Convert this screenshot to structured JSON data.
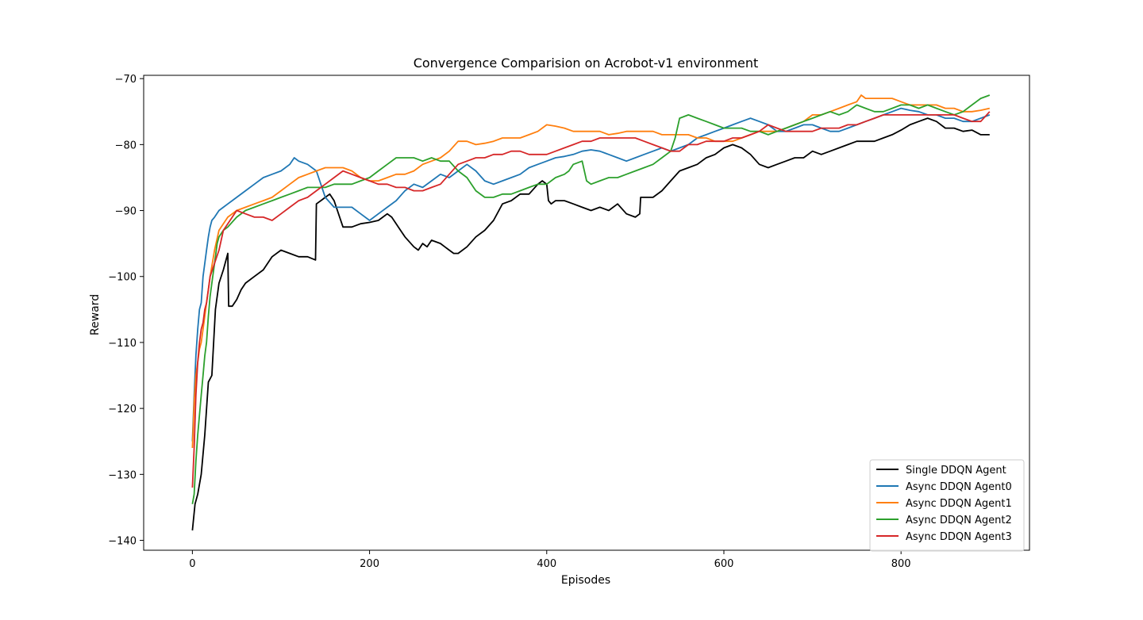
{
  "chart_data": {
    "type": "line",
    "title": "Convergence Comparision on Acrobot-v1 environment",
    "xlabel": "Episodes",
    "ylabel": "Reward",
    "xlim": [
      -55,
      945
    ],
    "ylim": [
      -141.5,
      -69.5
    ],
    "xticks": [
      0,
      200,
      400,
      600,
      800
    ],
    "yticks": [
      -140,
      -130,
      -120,
      -110,
      -100,
      -90,
      -80,
      -70
    ],
    "grid": false,
    "legend_position": "lower-right",
    "series": [
      {
        "name": "Single DDQN Agent",
        "color": "#000000",
        "x": [
          0,
          3,
          6,
          10,
          14,
          18,
          22,
          26,
          30,
          35,
          40,
          41,
          45,
          50,
          55,
          60,
          70,
          80,
          90,
          100,
          110,
          120,
          130,
          139,
          140,
          145,
          150,
          155,
          160,
          170,
          175,
          180,
          190,
          200,
          210,
          215,
          220,
          225,
          230,
          235,
          240,
          250,
          255,
          260,
          265,
          270,
          280,
          285,
          290,
          295,
          300,
          310,
          320,
          330,
          340,
          350,
          360,
          370,
          380,
          390,
          395,
          400,
          402,
          405,
          410,
          420,
          430,
          440,
          450,
          460,
          470,
          480,
          490,
          500,
          505,
          506,
          510,
          520,
          530,
          540,
          550,
          560,
          570,
          580,
          590,
          600,
          610,
          620,
          630,
          640,
          650,
          660,
          670,
          680,
          690,
          700,
          710,
          720,
          730,
          740,
          750,
          760,
          770,
          780,
          790,
          800,
          810,
          820,
          830,
          840,
          850,
          860,
          870,
          880,
          890,
          900
        ],
        "y": [
          -138.5,
          -134.5,
          -133,
          -130,
          -124,
          -116,
          -115,
          -105,
          -101,
          -99,
          -96.5,
          -104.5,
          -104.5,
          -103.5,
          -102,
          -101,
          -100,
          -99,
          -97,
          -96,
          -96.5,
          -97,
          -97,
          -97.5,
          -89,
          -88.5,
          -88,
          -87.5,
          -88.5,
          -92.5,
          -92.5,
          -92.5,
          -92,
          -91.8,
          -91.5,
          -91,
          -90.5,
          -91,
          -92,
          -93,
          -94,
          -95.5,
          -96,
          -95,
          -95.5,
          -94.5,
          -95,
          -95.5,
          -96,
          -96.5,
          -96.5,
          -95.5,
          -94,
          -93,
          -91.5,
          -89,
          -88.5,
          -87.5,
          -87.5,
          -86,
          -85.5,
          -86,
          -88.5,
          -89,
          -88.5,
          -88.5,
          -89,
          -89.5,
          -90,
          -89.5,
          -90,
          -89,
          -90.5,
          -91,
          -90.5,
          -88,
          -88,
          -88,
          -87,
          -85.5,
          -84,
          -83.5,
          -83,
          -82,
          -81.5,
          -80.5,
          -80,
          -80.5,
          -81.5,
          -83,
          -83.5,
          -83,
          -82.5,
          -82,
          -82,
          -81,
          -81.5,
          -81,
          -80.5,
          -80,
          -79.5,
          -79.5,
          -79.5,
          -79,
          -78.5,
          -77.8,
          -77,
          -76.5,
          -76,
          -76.5,
          -77.5,
          -77.5,
          -78,
          -77.8,
          -78.5,
          -78.5
        ]
      },
      {
        "name": "Async DDQN Agent0",
        "color": "#1f77b4",
        "x": [
          0,
          2,
          4,
          6,
          8,
          10,
          12,
          14,
          16,
          18,
          20,
          22,
          25,
          30,
          35,
          40,
          50,
          60,
          70,
          80,
          90,
          100,
          110,
          115,
          120,
          130,
          140,
          145,
          150,
          160,
          170,
          180,
          190,
          200,
          210,
          220,
          230,
          240,
          250,
          260,
          270,
          280,
          290,
          300,
          310,
          320,
          330,
          340,
          350,
          360,
          370,
          380,
          390,
          400,
          410,
          420,
          430,
          440,
          450,
          460,
          470,
          480,
          490,
          500,
          510,
          520,
          530,
          540,
          550,
          560,
          570,
          580,
          590,
          600,
          610,
          620,
          630,
          640,
          650,
          660,
          670,
          680,
          690,
          700,
          710,
          720,
          730,
          740,
          750,
          760,
          770,
          780,
          790,
          800,
          810,
          820,
          830,
          840,
          850,
          860,
          870,
          880,
          890,
          900
        ],
        "y": [
          -125,
          -118,
          -112,
          -108,
          -105,
          -104,
          -100,
          -98,
          -96,
          -94,
          -92.5,
          -91.5,
          -91,
          -90,
          -89.5,
          -89,
          -88,
          -87,
          -86,
          -85,
          -84.5,
          -84,
          -83,
          -82,
          -82.5,
          -83,
          -84,
          -86,
          -88,
          -89.5,
          -89.5,
          -89.5,
          -90.5,
          -91.5,
          -90.5,
          -89.5,
          -88.5,
          -87,
          -86,
          -86.5,
          -85.5,
          -84.5,
          -85,
          -84,
          -83,
          -84,
          -85.5,
          -86,
          -85.5,
          -85,
          -84.5,
          -83.5,
          -83,
          -82.5,
          -82,
          -81.8,
          -81.5,
          -81,
          -80.8,
          -81,
          -81.5,
          -82,
          -82.5,
          -82,
          -81.5,
          -81,
          -80.5,
          -81,
          -80.5,
          -80,
          -79,
          -78.5,
          -78,
          -77.5,
          -77,
          -76.5,
          -76,
          -76.5,
          -77,
          -78,
          -78,
          -77.5,
          -77,
          -77,
          -77.5,
          -78,
          -78,
          -77.5,
          -77,
          -76.5,
          -76,
          -75.5,
          -75,
          -74.5,
          -74.8,
          -75,
          -75.5,
          -75.5,
          -76,
          -76,
          -76.5,
          -76.5,
          -76,
          -75.5
        ]
      },
      {
        "name": "Async DDQN Agent1",
        "color": "#ff7f0e",
        "x": [
          0,
          2,
          4,
          6,
          8,
          10,
          12,
          14,
          16,
          18,
          20,
          25,
          30,
          35,
          40,
          50,
          60,
          70,
          80,
          90,
          100,
          110,
          120,
          130,
          140,
          150,
          160,
          170,
          180,
          190,
          200,
          210,
          220,
          230,
          240,
          250,
          260,
          270,
          280,
          290,
          300,
          310,
          320,
          330,
          340,
          350,
          360,
          370,
          380,
          390,
          400,
          410,
          420,
          430,
          440,
          450,
          460,
          470,
          480,
          490,
          500,
          510,
          520,
          530,
          540,
          550,
          560,
          570,
          580,
          590,
          600,
          610,
          620,
          630,
          640,
          650,
          660,
          670,
          680,
          690,
          700,
          710,
          720,
          730,
          740,
          750,
          755,
          760,
          770,
          780,
          790,
          800,
          810,
          820,
          830,
          840,
          850,
          860,
          870,
          880,
          890,
          900
        ],
        "y": [
          -126,
          -119,
          -115,
          -113,
          -111,
          -110,
          -108,
          -106,
          -104,
          -102,
          -100,
          -96,
          -93,
          -92,
          -91,
          -90,
          -89.5,
          -89,
          -88.5,
          -88,
          -87,
          -86,
          -85,
          -84.5,
          -84,
          -83.5,
          -83.5,
          -83.5,
          -84,
          -85,
          -85.5,
          -85.5,
          -85,
          -84.5,
          -84.5,
          -84,
          -83,
          -82.5,
          -82,
          -81,
          -79.5,
          -79.5,
          -80,
          -79.8,
          -79.5,
          -79,
          -79,
          -79,
          -78.5,
          -78,
          -77,
          -77.2,
          -77.5,
          -78,
          -78,
          -78,
          -78,
          -78.5,
          -78.3,
          -78,
          -78,
          -78,
          -78,
          -78.5,
          -78.5,
          -78.5,
          -78.5,
          -79,
          -79,
          -79.5,
          -79.5,
          -79.5,
          -79,
          -78.5,
          -78,
          -78,
          -78,
          -77.5,
          -77,
          -76.5,
          -75.5,
          -75.5,
          -75,
          -74.5,
          -74,
          -73.5,
          -72.5,
          -73,
          -73,
          -73,
          -73,
          -73.5,
          -74,
          -74,
          -74,
          -74,
          -74.5,
          -74.5,
          -75,
          -75,
          -74.8,
          -74.5
        ]
      },
      {
        "name": "Async DDQN Agent2",
        "color": "#2ca02c",
        "x": [
          0,
          2,
          4,
          6,
          8,
          10,
          12,
          14,
          16,
          18,
          20,
          22,
          25,
          28,
          30,
          35,
          40,
          50,
          60,
          70,
          80,
          90,
          100,
          110,
          120,
          130,
          140,
          150,
          160,
          170,
          180,
          190,
          200,
          210,
          220,
          230,
          240,
          250,
          260,
          270,
          280,
          290,
          300,
          310,
          320,
          330,
          340,
          350,
          360,
          370,
          380,
          390,
          400,
          410,
          420,
          425,
          430,
          440,
          445,
          450,
          460,
          470,
          480,
          490,
          500,
          510,
          520,
          530,
          540,
          545,
          550,
          560,
          570,
          580,
          590,
          600,
          610,
          620,
          630,
          640,
          650,
          660,
          670,
          680,
          690,
          700,
          710,
          720,
          730,
          740,
          750,
          760,
          770,
          780,
          790,
          800,
          810,
          820,
          830,
          840,
          850,
          860,
          870,
          880,
          890,
          900
        ],
        "y": [
          -134.5,
          -133,
          -128,
          -124,
          -121,
          -118,
          -115,
          -112,
          -110,
          -106,
          -103,
          -101,
          -98,
          -95,
          -94,
          -93,
          -92.5,
          -91,
          -90,
          -89.5,
          -89,
          -88.5,
          -88,
          -87.5,
          -87,
          -86.5,
          -86.5,
          -86.5,
          -86,
          -86,
          -86,
          -85.5,
          -85,
          -84,
          -83,
          -82,
          -82,
          -82,
          -82.5,
          -82,
          -82.5,
          -82.5,
          -84,
          -85,
          -87,
          -88,
          -88,
          -87.5,
          -87.5,
          -87,
          -86.5,
          -86,
          -86,
          -85,
          -84.5,
          -84,
          -83,
          -82.5,
          -85.5,
          -86,
          -85.5,
          -85,
          -85,
          -84.5,
          -84,
          -83.5,
          -83,
          -82,
          -81,
          -79,
          -76,
          -75.5,
          -76,
          -76.5,
          -77,
          -77.5,
          -77.5,
          -77.5,
          -78,
          -78,
          -78.5,
          -78,
          -77.5,
          -77,
          -76.5,
          -76,
          -75.5,
          -75,
          -75.5,
          -75,
          -74,
          -74.5,
          -75,
          -75,
          -74.5,
          -74,
          -74,
          -74.5,
          -74,
          -74.5,
          -75,
          -75.5,
          -75,
          -74,
          -73,
          -72.5
        ]
      },
      {
        "name": "Async DDQN Agent3",
        "color": "#d62728",
        "x": [
          0,
          2,
          4,
          6,
          8,
          10,
          12,
          14,
          16,
          18,
          20,
          25,
          30,
          35,
          40,
          50,
          60,
          70,
          80,
          90,
          100,
          110,
          120,
          130,
          140,
          150,
          160,
          170,
          180,
          190,
          200,
          210,
          220,
          230,
          240,
          250,
          260,
          270,
          280,
          290,
          300,
          310,
          320,
          330,
          340,
          350,
          360,
          370,
          380,
          390,
          400,
          410,
          420,
          430,
          440,
          450,
          460,
          470,
          480,
          490,
          500,
          510,
          520,
          530,
          540,
          550,
          560,
          570,
          580,
          590,
          600,
          610,
          620,
          630,
          640,
          650,
          660,
          670,
          680,
          690,
          700,
          710,
          720,
          730,
          740,
          750,
          760,
          770,
          780,
          790,
          800,
          810,
          820,
          830,
          840,
          850,
          860,
          870,
          880,
          890,
          900
        ],
        "y": [
          -132,
          -126,
          -118,
          -113,
          -110,
          -108,
          -107,
          -105,
          -104,
          -102,
          -100,
          -98,
          -96,
          -93,
          -92,
          -90,
          -90.5,
          -91,
          -91,
          -91.5,
          -90.5,
          -89.5,
          -88.5,
          -88,
          -87,
          -86,
          -85,
          -84,
          -84.5,
          -85,
          -85.5,
          -86,
          -86,
          -86.5,
          -86.5,
          -87,
          -87,
          -86.5,
          -86,
          -84.5,
          -83,
          -82.5,
          -82,
          -82,
          -81.5,
          -81.5,
          -81,
          -81,
          -81.5,
          -81.5,
          -81.5,
          -81,
          -80.5,
          -80,
          -79.5,
          -79.5,
          -79,
          -79,
          -79,
          -79,
          -79,
          -79.5,
          -80,
          -80.5,
          -81,
          -81,
          -80,
          -80,
          -79.5,
          -79.5,
          -79.5,
          -79,
          -79,
          -78.5,
          -78,
          -77,
          -77.5,
          -78,
          -78,
          -78,
          -78,
          -77.5,
          -77.5,
          -77.5,
          -77,
          -77,
          -76.5,
          -76,
          -75.5,
          -75.5,
          -75.5,
          -75.5,
          -75.5,
          -75.5,
          -75.5,
          -75.5,
          -75.5,
          -76,
          -76.5,
          -76.5,
          -75
        ]
      }
    ]
  }
}
